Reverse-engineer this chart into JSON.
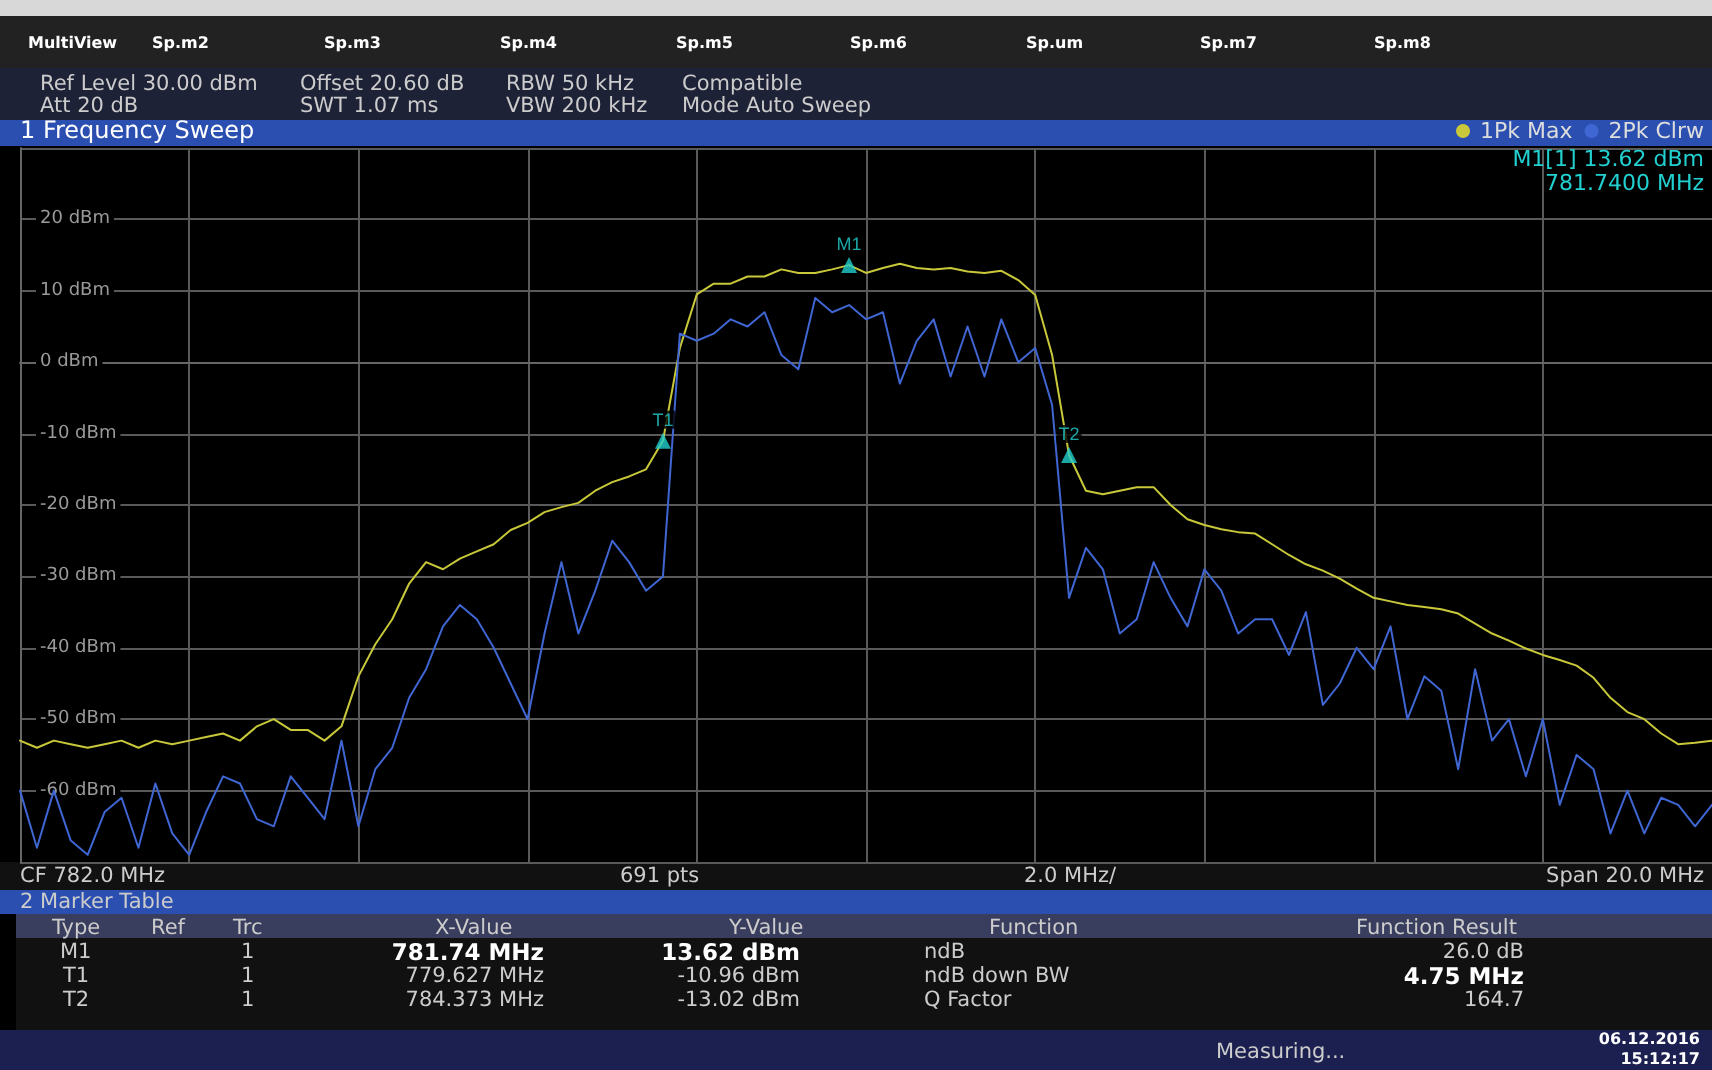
{
  "chart_data": {
    "type": "line",
    "title": "1 Frequency Sweep",
    "categories": [
      null,
      null,
      null,
      null,
      null,
      null,
      null,
      null,
      null,
      null,
      null,
      null,
      null,
      null,
      null,
      null,
      null,
      null,
      null,
      null,
      null,
      null,
      null,
      null,
      null,
      null,
      null,
      null,
      null,
      null,
      null,
      null,
      null,
      null,
      null,
      null,
      null,
      null,
      null,
      null,
      null,
      null,
      null,
      null,
      null,
      null,
      null,
      null,
      null,
      null,
      null,
      null,
      null,
      null,
      null,
      null,
      null,
      null,
      null,
      null,
      null,
      null,
      null,
      null,
      null,
      null,
      null,
      null,
      null,
      null,
      null,
      null,
      null,
      null,
      null,
      null,
      null,
      null,
      null,
      null,
      null,
      null,
      null,
      null,
      null,
      null,
      null,
      null,
      null,
      null,
      null,
      null,
      null,
      null,
      null,
      null,
      null,
      null,
      null,
      null,
      null
    ],
    "ylim": [
      -70,
      30
    ],
    "yticks": [
      {
        "value": 20,
        "label": "20 dBm"
      },
      {
        "value": 10,
        "label": "10 dBm"
      },
      {
        "value": 0,
        "label": "0 dBm"
      },
      {
        "value": -10,
        "label": "-10 dBm"
      },
      {
        "value": -20,
        "label": "-20 dBm"
      },
      {
        "value": -30,
        "label": "-30 dBm"
      },
      {
        "value": -40,
        "label": "-40 dBm"
      },
      {
        "value": -50,
        "label": "-50 dBm"
      },
      {
        "value": -60,
        "label": "-60 dBm"
      }
    ],
    "tick_labels": "y",
    "grid": true,
    "legend": "top right",
    "marker": "none",
    "line_style": "solid",
    "series": [
      {
        "name": "1Pk Max",
        "color": "#c8c83a",
        "values": [
          -53,
          -54,
          -53,
          -53.5,
          -54,
          -53.5,
          -53,
          -54,
          -53,
          -53.5,
          -53,
          -52.5,
          -52,
          -53,
          -51,
          -50,
          -51.5,
          -51.5,
          -53,
          -51,
          -44,
          -39.5,
          -36,
          -31,
          -28,
          -29,
          -27.5,
          -26.5,
          -25.5,
          -23.5,
          -22.5,
          -21,
          -20.3,
          -19.7,
          -18,
          -16.8,
          -16,
          -15,
          -11,
          2,
          9.5,
          11,
          11,
          12,
          12,
          13,
          12.5,
          12.5,
          13,
          13.6,
          12.5,
          13.2,
          13.8,
          13.2,
          13,
          13.2,
          12.7,
          12.5,
          12.8,
          11.5,
          9.4,
          1,
          -13,
          -18,
          -18.5,
          -18,
          -17.5,
          -17.5,
          -20,
          -22,
          -22.8,
          -23.4,
          -23.8,
          -24,
          -25.5,
          -27,
          -28.3,
          -29.2,
          -30.3,
          -31.7,
          -33,
          -33.5,
          -34,
          -34.3,
          -34.6,
          -35.2,
          -36.6,
          -38,
          -39,
          -40.1,
          -41,
          -41.7,
          -42.5,
          -44.2,
          -47,
          -49,
          -50,
          -52,
          -53.5,
          -53.3,
          -53
        ]
      },
      {
        "name": "2Pk Clrw",
        "color": "#3f66d2",
        "values": [
          -60,
          -68,
          -60,
          -67,
          -69,
          -63,
          -61,
          -68,
          -59,
          -66,
          -69,
          -63,
          -58,
          -59,
          -64,
          -65,
          -58,
          -61,
          -64,
          -53,
          -65,
          -57,
          -54,
          -47,
          -43,
          -37,
          -34,
          -36,
          -40,
          -45,
          -50,
          -38,
          -28,
          -38,
          -32,
          -25,
          -28,
          -32,
          -30,
          4,
          3,
          4,
          6,
          5,
          7,
          1,
          -1,
          9,
          7,
          8,
          6,
          7,
          -3,
          3,
          6,
          -2,
          5,
          -2,
          6,
          0,
          2,
          -6,
          -33,
          -26,
          -29,
          -38,
          -36,
          -28,
          -33,
          -37,
          -29,
          -32,
          -38,
          -36,
          -36,
          -41,
          -35,
          -48,
          -45,
          -40,
          -43,
          -37,
          -50,
          -44,
          -46,
          -57,
          -43,
          -53,
          -50,
          -58,
          -50,
          -62,
          -55,
          -57,
          -66,
          -60,
          -66,
          -61,
          -62,
          -65,
          -62
        ]
      },
      {
        "type": "scatter",
        "marker": "triangle",
        "color": "#22d0d0",
        "values": [
          null,
          null,
          null,
          null,
          null,
          null,
          null,
          null,
          null,
          null,
          null,
          null,
          null,
          null,
          null,
          null,
          null,
          null,
          null,
          null,
          null,
          null,
          null,
          null,
          null,
          null,
          null,
          null,
          null,
          null,
          null,
          null,
          null,
          null,
          null,
          null,
          null,
          null,
          -11,
          null,
          null,
          null,
          null,
          null,
          null,
          null,
          null,
          null,
          null,
          13.6,
          null,
          null,
          null,
          null,
          null,
          null,
          null,
          null,
          null,
          null,
          null,
          null,
          -13,
          null,
          null,
          null,
          null,
          null,
          null,
          null,
          null,
          null,
          null,
          null,
          null,
          null,
          null,
          null,
          null,
          null,
          null,
          null,
          null,
          null,
          null,
          null,
          null,
          null,
          null,
          null,
          null,
          null,
          null,
          null,
          null,
          null,
          null,
          null,
          null,
          null,
          null
        ],
        "value_labels": [
          null,
          null,
          null,
          null,
          null,
          null,
          null,
          null,
          null,
          null,
          null,
          null,
          null,
          null,
          null,
          null,
          null,
          null,
          null,
          null,
          null,
          null,
          null,
          null,
          null,
          null,
          null,
          null,
          null,
          null,
          null,
          null,
          null,
          null,
          null,
          null,
          null,
          null,
          "T1",
          null,
          null,
          null,
          null,
          null,
          null,
          null,
          null,
          null,
          null,
          "M1",
          null,
          null,
          null,
          null,
          null,
          null,
          null,
          null,
          null,
          null,
          null,
          null,
          "T2",
          null,
          null,
          null,
          null,
          null,
          null,
          null,
          null,
          null,
          null,
          null,
          null,
          null,
          null,
          null,
          null,
          null,
          null,
          null,
          null,
          null,
          null,
          null,
          null,
          null,
          null,
          null,
          null,
          null,
          null,
          null,
          null,
          null,
          null,
          null,
          null,
          null,
          null
        ]
      }
    ],
    "annotations": [
      "MultiView",
      "Sp.m2",
      "Sp.m3",
      "Sp.m4",
      "Sp.m5",
      "Sp.m6",
      "Sp.um",
      "Sp.m7",
      "Sp.m8",
      "Ref Level 30.00 dBm",
      "Att 20 dB",
      "Offset 20.60 dB",
      "SWT 1.07 ms",
      "RBW 50 kHz",
      "VBW 200 kHz",
      "Compatible",
      "Mode Auto Sweep",
      "M1[1] 13.62 dBm",
      "781.7400 MHz",
      "CF 782.0 MHz",
      "691 pts",
      "2.0 MHz/",
      "Span 20.0 MHz",
      "2 Marker Table",
      "Type",
      "Ref",
      "Trc",
      "X-Value",
      "Y-Value",
      "Function",
      "Function Result",
      "M1",
      "1",
      "781.74 MHz",
      "13.62 dBm",
      "ndB",
      "26.0 dB",
      "T1",
      "1",
      "779.627 MHz",
      "-10.96 dBm",
      "ndB down BW",
      "4.75 MHz",
      "T2",
      "1",
      "784.373 MHz",
      "-13.02 dBm",
      "Q Factor",
      "164.7",
      "Measuring...",
      "06.12.2016",
      "15:12:17"
    ]
  }
}
